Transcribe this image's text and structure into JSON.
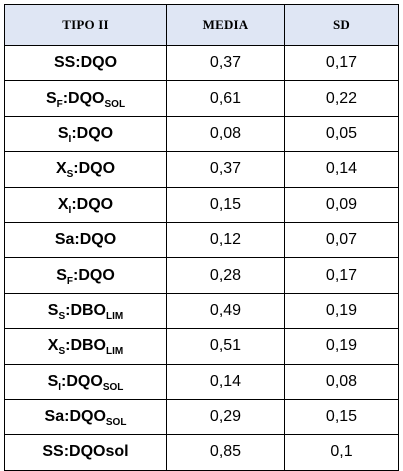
{
  "header": {
    "col_param": "TIPO II",
    "col_media": "MEDIA",
    "col_sd": "SD"
  },
  "rows": [
    {
      "base": "SS",
      "base_sub": "",
      "rest": ":DQO",
      "rest_sub": "",
      "media": "0,37",
      "sd": "0,17"
    },
    {
      "base": "S",
      "base_sub": "F",
      "rest": ":DQO",
      "rest_sub": "SOL",
      "media": "0,61",
      "sd": "0,22"
    },
    {
      "base": "S",
      "base_sub": "I",
      "rest": ":DQO",
      "rest_sub": "",
      "media": "0,08",
      "sd": "0,05"
    },
    {
      "base": "X",
      "base_sub": "S",
      "rest": ":DQO",
      "rest_sub": "",
      "media": "0,37",
      "sd": "0,14"
    },
    {
      "base": "X",
      "base_sub": "I",
      "rest": ":DQO",
      "rest_sub": "",
      "media": "0,15",
      "sd": "0,09"
    },
    {
      "base": "Sa",
      "base_sub": "",
      "rest": ":DQO",
      "rest_sub": "",
      "media": "0,12",
      "sd": "0,07"
    },
    {
      "base": "S",
      "base_sub": "F",
      "rest": ":DQO",
      "rest_sub": "",
      "media": "0,28",
      "sd": "0,17"
    },
    {
      "base": "S",
      "base_sub": "S",
      "rest": ":DBO",
      "rest_sub": "LIM",
      "media": "0,49",
      "sd": "0,19"
    },
    {
      "base": "X",
      "base_sub": "S",
      "rest": ":DBO",
      "rest_sub": "LIM",
      "media": "0,51",
      "sd": "0,19"
    },
    {
      "base": "S",
      "base_sub": "I",
      "rest": ":DQO",
      "rest_sub": "SOL",
      "media": "0,14",
      "sd": "0,08"
    },
    {
      "base": "Sa",
      "base_sub": "",
      "rest": ":DQO",
      "rest_sub": "SOL",
      "media": "0,29",
      "sd": "0,15"
    },
    {
      "base": "SS",
      "base_sub": "",
      "rest": ":DQOsol",
      "rest_sub": "",
      "media": "0,85",
      "sd": "0,1"
    }
  ]
}
